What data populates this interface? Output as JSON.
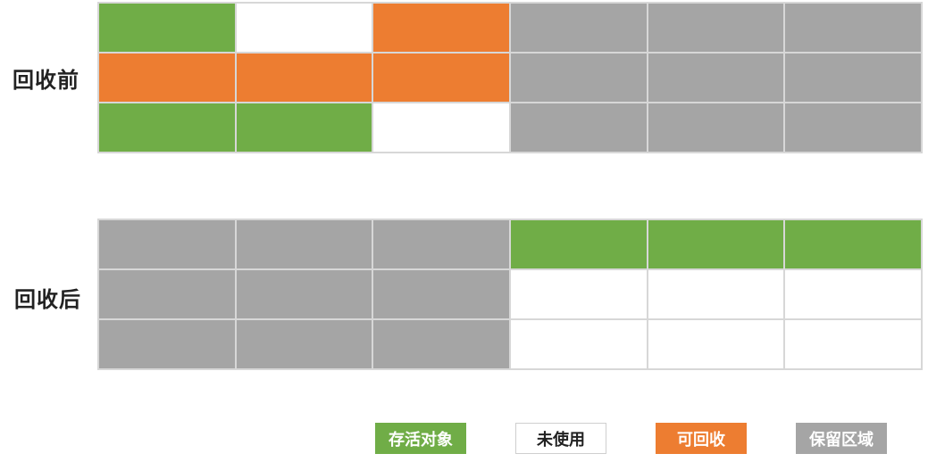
{
  "labels": {
    "before": "回收前",
    "after": "回收后"
  },
  "legend": {
    "live": "存活对象",
    "unused": "未使用",
    "recycle": "可回收",
    "reserved": "保留区域"
  },
  "colors": {
    "live": "#70ad47",
    "unused": "#ffffff",
    "recycle": "#ed7d31",
    "reserved": "#a5a5a5"
  },
  "grids": {
    "before": [
      [
        "live",
        "unused",
        "recycle",
        "reserved",
        "reserved",
        "reserved"
      ],
      [
        "recycle",
        "recycle",
        "recycle",
        "reserved",
        "reserved",
        "reserved"
      ],
      [
        "live",
        "live",
        "unused",
        "reserved",
        "reserved",
        "reserved"
      ]
    ],
    "after": [
      [
        "reserved",
        "reserved",
        "reserved",
        "live",
        "live",
        "live"
      ],
      [
        "reserved",
        "reserved",
        "reserved",
        "unused",
        "unused",
        "unused"
      ],
      [
        "reserved",
        "reserved",
        "reserved",
        "unused",
        "unused",
        "unused"
      ]
    ]
  }
}
